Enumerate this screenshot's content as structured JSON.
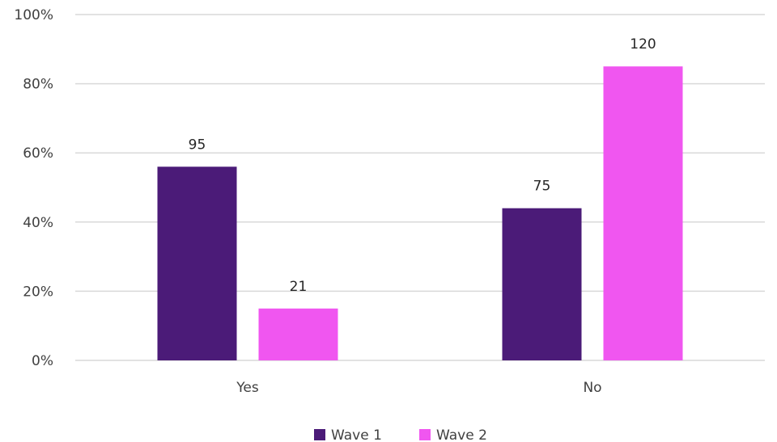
{
  "chart_data": {
    "type": "bar",
    "categories": [
      "Yes",
      "No"
    ],
    "series": [
      {
        "name": "Wave 1",
        "values": [
          56,
          44
        ],
        "labels": [
          "95",
          "75"
        ],
        "color": "#4b1b78"
      },
      {
        "name": "Wave 2",
        "values": [
          15,
          85
        ],
        "labels": [
          "21",
          "120"
        ],
        "color": "#f056f0"
      }
    ],
    "ylim": [
      0,
      100
    ],
    "yticks": [
      "0%",
      "20%",
      "40%",
      "60%",
      "80%",
      "100%"
    ],
    "grid": true,
    "legend": "bottom"
  }
}
